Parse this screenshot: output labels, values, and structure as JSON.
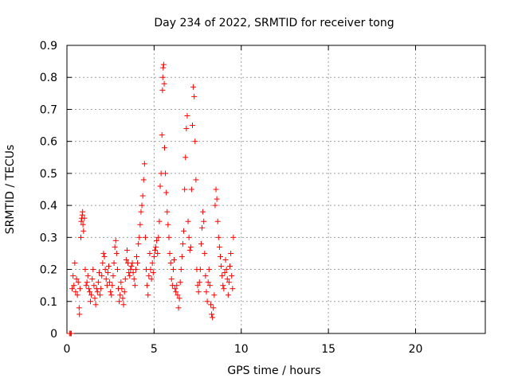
{
  "chart_data": {
    "type": "scatter",
    "title": "Day 234 of 2022, SRMTID for receiver tong",
    "xlabel": "GPS time / hours",
    "ylabel": "SRMTID / TECUs",
    "xlim": [
      0,
      24
    ],
    "ylim": [
      0,
      0.9
    ],
    "xticks": [
      0,
      5,
      10,
      15,
      20
    ],
    "yticks": [
      0,
      0.1,
      0.2,
      0.3,
      0.4,
      0.5,
      0.6,
      0.7,
      0.8,
      0.9
    ],
    "xtick_labels": [
      "0",
      "5",
      "10",
      "15",
      "20"
    ],
    "ytick_labels": [
      "0",
      "0.1",
      "0.2",
      "0.3",
      "0.4",
      "0.5",
      "0.6",
      "0.7",
      "0.8",
      "0.9"
    ],
    "grid": true,
    "marker": "+",
    "color": "#ff0000",
    "series": [
      {
        "name": "SRMTID",
        "points": [
          [
            0.15,
            0.0
          ],
          [
            0.2,
            0.0
          ],
          [
            0.25,
            0.0
          ],
          [
            0.3,
            0.14
          ],
          [
            0.35,
            0.18
          ],
          [
            0.4,
            0.15
          ],
          [
            0.45,
            0.22
          ],
          [
            0.5,
            0.13
          ],
          [
            0.55,
            0.17
          ],
          [
            0.6,
            0.12
          ],
          [
            0.65,
            0.16
          ],
          [
            0.7,
            0.08
          ],
          [
            0.72,
            0.06
          ],
          [
            0.75,
            0.14
          ],
          [
            0.8,
            0.3
          ],
          [
            0.82,
            0.35
          ],
          [
            0.85,
            0.36
          ],
          [
            0.88,
            0.37
          ],
          [
            0.9,
            0.38
          ],
          [
            0.92,
            0.34
          ],
          [
            0.95,
            0.32
          ],
          [
            1.0,
            0.36
          ],
          [
            1.05,
            0.2
          ],
          [
            1.1,
            0.15
          ],
          [
            1.15,
            0.16
          ],
          [
            1.2,
            0.18
          ],
          [
            1.25,
            0.14
          ],
          [
            1.3,
            0.13
          ],
          [
            1.35,
            0.1
          ],
          [
            1.4,
            0.12
          ],
          [
            1.45,
            0.17
          ],
          [
            1.5,
            0.2
          ],
          [
            1.55,
            0.15
          ],
          [
            1.6,
            0.11
          ],
          [
            1.65,
            0.09
          ],
          [
            1.7,
            0.14
          ],
          [
            1.75,
            0.13
          ],
          [
            1.8,
            0.16
          ],
          [
            1.85,
            0.19
          ],
          [
            1.9,
            0.12
          ],
          [
            1.95,
            0.14
          ],
          [
            2.0,
            0.18
          ],
          [
            2.05,
            0.22
          ],
          [
            2.1,
            0.25
          ],
          [
            2.15,
            0.24
          ],
          [
            2.2,
            0.2
          ],
          [
            2.25,
            0.17
          ],
          [
            2.3,
            0.15
          ],
          [
            2.35,
            0.19
          ],
          [
            2.4,
            0.21
          ],
          [
            2.45,
            0.16
          ],
          [
            2.5,
            0.13
          ],
          [
            2.55,
            0.12
          ],
          [
            2.6,
            0.15
          ],
          [
            2.65,
            0.18
          ],
          [
            2.7,
            0.22
          ],
          [
            2.75,
            0.27
          ],
          [
            2.8,
            0.29
          ],
          [
            2.85,
            0.25
          ],
          [
            2.9,
            0.2
          ],
          [
            2.95,
            0.14
          ],
          [
            3.0,
            0.1
          ],
          [
            3.05,
            0.12
          ],
          [
            3.1,
            0.16
          ],
          [
            3.15,
            0.14
          ],
          [
            3.2,
            0.11
          ],
          [
            3.25,
            0.09
          ],
          [
            3.3,
            0.13
          ],
          [
            3.35,
            0.17
          ],
          [
            3.4,
            0.23
          ],
          [
            3.45,
            0.26
          ],
          [
            3.5,
            0.22
          ],
          [
            3.55,
            0.19
          ],
          [
            3.6,
            0.18
          ],
          [
            3.65,
            0.2
          ],
          [
            3.7,
            0.21
          ],
          [
            3.75,
            0.22
          ],
          [
            3.8,
            0.19
          ],
          [
            3.85,
            0.17
          ],
          [
            3.9,
            0.15
          ],
          [
            3.95,
            0.2
          ],
          [
            4.0,
            0.24
          ],
          [
            4.05,
            0.22
          ],
          [
            4.1,
            0.28
          ],
          [
            4.15,
            0.3
          ],
          [
            4.2,
            0.34
          ],
          [
            4.25,
            0.38
          ],
          [
            4.3,
            0.4
          ],
          [
            4.35,
            0.43
          ],
          [
            4.4,
            0.48
          ],
          [
            4.45,
            0.53
          ],
          [
            4.5,
            0.3
          ],
          [
            4.55,
            0.2
          ],
          [
            4.6,
            0.15
          ],
          [
            4.65,
            0.12
          ],
          [
            4.7,
            0.18
          ],
          [
            4.75,
            0.25
          ],
          [
            4.8,
            0.2
          ],
          [
            4.85,
            0.17
          ],
          [
            4.9,
            0.22
          ],
          [
            4.95,
            0.19
          ],
          [
            5.0,
            0.24
          ],
          [
            5.05,
            0.26
          ],
          [
            5.1,
            0.27
          ],
          [
            5.15,
            0.29
          ],
          [
            5.2,
            0.25
          ],
          [
            5.25,
            0.3
          ],
          [
            5.3,
            0.35
          ],
          [
            5.35,
            0.46
          ],
          [
            5.4,
            0.5
          ],
          [
            5.45,
            0.62
          ],
          [
            5.48,
            0.76
          ],
          [
            5.5,
            0.8
          ],
          [
            5.52,
            0.83
          ],
          [
            5.55,
            0.84
          ],
          [
            5.58,
            0.78
          ],
          [
            5.6,
            0.58
          ],
          [
            5.65,
            0.5
          ],
          [
            5.7,
            0.44
          ],
          [
            5.75,
            0.38
          ],
          [
            5.8,
            0.34
          ],
          [
            5.85,
            0.3
          ],
          [
            5.9,
            0.25
          ],
          [
            5.95,
            0.22
          ],
          [
            6.0,
            0.17
          ],
          [
            6.05,
            0.15
          ],
          [
            6.1,
            0.2
          ],
          [
            6.15,
            0.23
          ],
          [
            6.2,
            0.14
          ],
          [
            6.25,
            0.13
          ],
          [
            6.3,
            0.15
          ],
          [
            6.35,
            0.12
          ],
          [
            6.4,
            0.08
          ],
          [
            6.45,
            0.11
          ],
          [
            6.5,
            0.16
          ],
          [
            6.55,
            0.2
          ],
          [
            6.6,
            0.24
          ],
          [
            6.65,
            0.28
          ],
          [
            6.7,
            0.32
          ],
          [
            6.75,
            0.45
          ],
          [
            6.8,
            0.55
          ],
          [
            6.85,
            0.64
          ],
          [
            6.9,
            0.68
          ],
          [
            6.95,
            0.35
          ],
          [
            7.0,
            0.3
          ],
          [
            7.05,
            0.26
          ],
          [
            7.1,
            0.27
          ],
          [
            7.15,
            0.45
          ],
          [
            7.2,
            0.65
          ],
          [
            7.25,
            0.77
          ],
          [
            7.3,
            0.74
          ],
          [
            7.35,
            0.6
          ],
          [
            7.4,
            0.48
          ],
          [
            7.45,
            0.2
          ],
          [
            7.5,
            0.15
          ],
          [
            7.55,
            0.13
          ],
          [
            7.6,
            0.16
          ],
          [
            7.65,
            0.2
          ],
          [
            7.7,
            0.28
          ],
          [
            7.75,
            0.33
          ],
          [
            7.8,
            0.38
          ],
          [
            7.85,
            0.35
          ],
          [
            7.9,
            0.25
          ],
          [
            7.95,
            0.18
          ],
          [
            8.0,
            0.13
          ],
          [
            8.05,
            0.1
          ],
          [
            8.1,
            0.16
          ],
          [
            8.15,
            0.2
          ],
          [
            8.2,
            0.15
          ],
          [
            8.25,
            0.09
          ],
          [
            8.3,
            0.06
          ],
          [
            8.35,
            0.05
          ],
          [
            8.4,
            0.08
          ],
          [
            8.45,
            0.12
          ],
          [
            8.5,
            0.4
          ],
          [
            8.55,
            0.45
          ],
          [
            8.6,
            0.42
          ],
          [
            8.65,
            0.35
          ],
          [
            8.7,
            0.3
          ],
          [
            8.75,
            0.27
          ],
          [
            8.8,
            0.24
          ],
          [
            8.85,
            0.21
          ],
          [
            8.9,
            0.18
          ],
          [
            8.95,
            0.15
          ],
          [
            9.0,
            0.14
          ],
          [
            9.05,
            0.19
          ],
          [
            9.1,
            0.23
          ],
          [
            9.15,
            0.2
          ],
          [
            9.2,
            0.17
          ],
          [
            9.25,
            0.12
          ],
          [
            9.3,
            0.16
          ],
          [
            9.35,
            0.21
          ],
          [
            9.4,
            0.25
          ],
          [
            9.45,
            0.18
          ],
          [
            9.5,
            0.14
          ],
          [
            9.55,
            0.3
          ]
        ]
      }
    ]
  }
}
